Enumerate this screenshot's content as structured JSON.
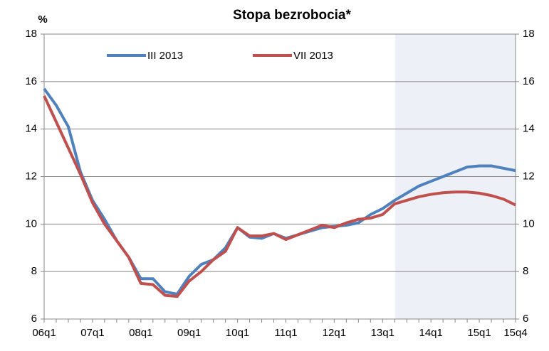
{
  "chart_data": {
    "type": "line",
    "title": "Stopa bezrobocia*",
    "y_label": "%",
    "categories": [
      "06q1",
      null,
      null,
      null,
      "07q1",
      null,
      null,
      null,
      "08q1",
      null,
      null,
      null,
      "09q1",
      null,
      null,
      null,
      "10q1",
      null,
      null,
      null,
      "11q1",
      null,
      null,
      null,
      "12q1",
      null,
      null,
      null,
      "13q1",
      null,
      null,
      null,
      "14q1",
      null,
      null,
      null,
      "15q1",
      null,
      null,
      "15q4"
    ],
    "series": [
      {
        "name": "III 2013",
        "color": "#4f81bd",
        "values": [
          15.7,
          15.0,
          14.1,
          12.2,
          11.0,
          10.2,
          9.3,
          8.6,
          7.7,
          7.7,
          7.15,
          7.05,
          7.8,
          8.3,
          8.5,
          9.0,
          9.85,
          9.45,
          9.4,
          9.6,
          9.4,
          9.55,
          9.7,
          9.85,
          9.9,
          9.95,
          10.05,
          10.4,
          10.65,
          11.0,
          11.3,
          11.6,
          11.8,
          12.0,
          12.2,
          12.4,
          12.45,
          12.45,
          12.35,
          12.25
        ]
      },
      {
        "name": "VII 2013",
        "color": "#c0504d",
        "values": [
          15.4,
          14.3,
          13.2,
          12.1,
          10.9,
          10.0,
          9.3,
          8.6,
          7.5,
          7.45,
          7.0,
          6.95,
          7.6,
          8.0,
          8.5,
          8.85,
          9.85,
          9.5,
          9.5,
          9.6,
          9.35,
          9.55,
          9.75,
          9.95,
          9.85,
          10.05,
          10.2,
          10.25,
          10.4,
          10.85,
          11.0,
          11.15,
          11.25,
          11.32,
          11.35,
          11.35,
          11.3,
          11.2,
          11.05,
          10.8
        ]
      }
    ],
    "ylim": [
      6,
      18
    ],
    "yticks": [
      6,
      8,
      10,
      12,
      14,
      16,
      18
    ],
    "grid": true
  }
}
